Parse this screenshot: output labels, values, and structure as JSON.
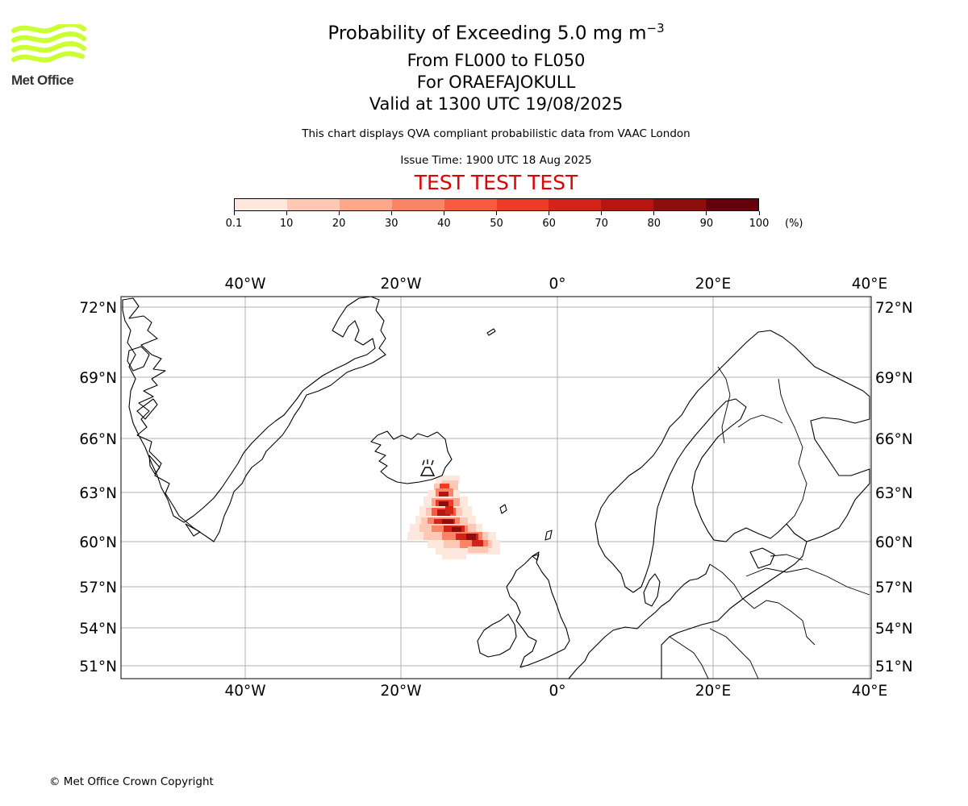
{
  "logo": {
    "text": "Met Office",
    "icon": "met-office-wave-logo",
    "color": "#ccff33"
  },
  "header": {
    "title": "Probability of Exceeding 5.0 mg m",
    "title_superscript": "−3",
    "line2": "From FL000 to FL050",
    "line3": "For ORAEFAJOKULL",
    "line4": "Valid at 1300 UTC 19/08/2025",
    "disclaimer": "This chart displays QVA compliant probabilistic data from VAAC London",
    "issue_time": "Issue Time: 1900 UTC 18 Aug 2025",
    "test_banner": "TEST TEST TEST",
    "test_color": "#dd0000"
  },
  "colorbar": {
    "ticks": [
      "0.1",
      "10",
      "20",
      "30",
      "40",
      "50",
      "60",
      "70",
      "80",
      "90",
      "100"
    ],
    "unit": "(%)",
    "colors": [
      "#fee8de",
      "#fdc9b5",
      "#fca68c",
      "#fb8466",
      "#f75b3f",
      "#ee3b26",
      "#d22419",
      "#b51513",
      "#8d0e0d",
      "#67000d"
    ]
  },
  "map": {
    "lon_labels": [
      "40°W",
      "20°W",
      "0°",
      "20°E",
      "40°E"
    ],
    "lat_labels": [
      "72°N",
      "69°N",
      "66°N",
      "63°N",
      "60°N",
      "57°N",
      "54°N",
      "51°N"
    ],
    "volcano_icon": "volcano-icon",
    "volcano_name": "ORAEFAJOKULL"
  },
  "footer": {
    "copyright": "© Met Office Crown Copyright"
  }
}
